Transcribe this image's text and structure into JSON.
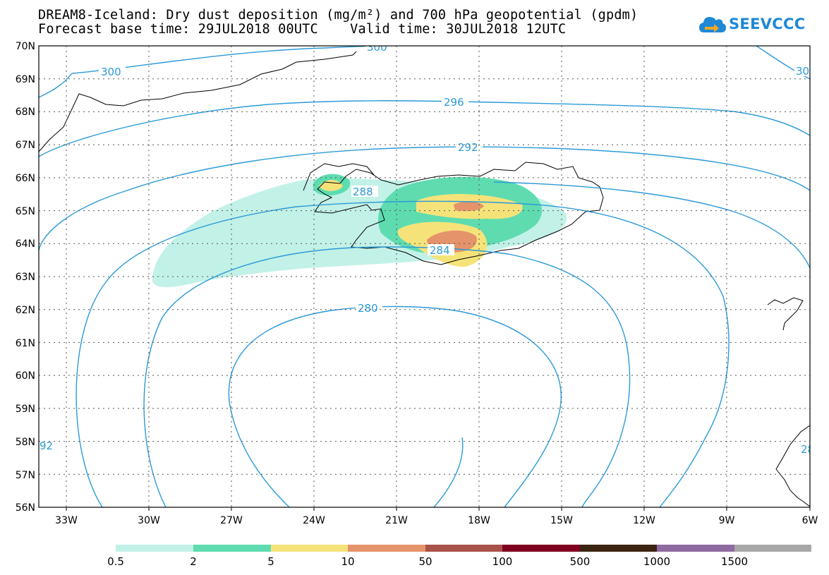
{
  "header": {
    "line1": "DREAM8-Iceland: Dry dust deposition (mg/m²) and 700 hPa geopotential (gpdm)",
    "line2": "Forecast base time: 29JUL2018 00UTC    Valid time: 30JUL2018 12UTC"
  },
  "logo": {
    "text": "SEEVCCC",
    "icon": "cloud-icon",
    "color": "#1e88d6"
  },
  "map": {
    "lat_labels": [
      "70N",
      "69N",
      "68N",
      "67N",
      "66N",
      "65N",
      "64N",
      "63N",
      "62N",
      "61N",
      "60N",
      "59N",
      "58N",
      "57N",
      "56N"
    ],
    "lon_labels": [
      "33W",
      "30W",
      "27W",
      "24W",
      "21W",
      "18W",
      "15W",
      "12W",
      "9W",
      "6W"
    ],
    "lat_range": [
      56,
      70
    ],
    "lon_range": [
      -34.0,
      -6.0
    ],
    "contour_color": "#2b9ad8",
    "contour_labels": [
      "300",
      "300",
      "30",
      "296",
      "292",
      "288",
      "284",
      "280",
      "92",
      "28"
    ],
    "coastline_color": "#000000"
  },
  "legend": {
    "colors": [
      "#c2f1e7",
      "#5edcb0",
      "#f5e37a",
      "#e5936b",
      "#a9524a",
      "#800020",
      "#3b2412",
      "#8e6aa0",
      "#a7a7a7"
    ],
    "ticks": [
      "0.5",
      "2",
      "5",
      "10",
      "50",
      "100",
      "500",
      "1000",
      "1500"
    ]
  }
}
